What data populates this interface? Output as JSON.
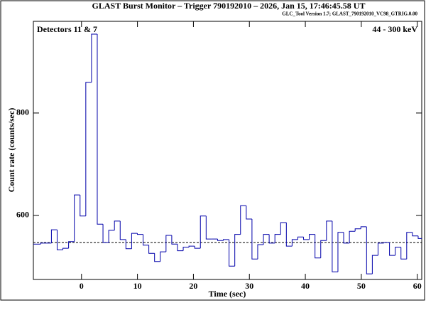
{
  "chart_data": {
    "type": "histogram",
    "title": "GLAST Burst Monitor  –  Trigger 790192010  –  2026, Jan 15, 17:46:45.58 UT",
    "subtitle": "GLC_Tool Version 1.7; GLAST_790192010_VC98_GTRIG.0.00",
    "annotations": [
      "Detectors 11 & 7",
      "44 - 300 keV"
    ],
    "x_label": "Time (sec)",
    "y_label": "Count rate (counts/sec)",
    "color": "#0000aa",
    "bins": [
      -8.6,
      -7.3,
      -5.376,
      -4.352,
      -3.328,
      -2.304,
      -1.28,
      -0.256,
      0.768,
      1.792,
      2.816,
      3.84,
      4.864,
      5.888,
      6.912,
      7.936,
      8.96,
      9.984,
      11.008,
      12.032,
      13.056,
      14.08,
      15.104,
      16.128,
      17.152,
      18.176,
      19.2,
      20.224,
      21.248,
      22.272,
      23.296,
      24.32,
      25.344,
      26.368,
      27.392,
      28.416,
      29.44,
      30.464,
      31.488,
      32.512,
      33.536,
      34.56,
      35.584,
      36.608,
      37.632,
      38.656,
      39.68,
      40.704,
      41.728,
      42.752,
      43.776,
      44.8,
      45.824,
      46.848,
      47.872,
      48.896,
      49.92,
      50.944,
      51.968,
      52.992,
      54.016,
      55.04,
      56.064,
      57.088,
      58.112,
      59.136,
      60.16,
      60.8
    ],
    "values": [
      544,
      546,
      572,
      533,
      536,
      549,
      640,
      599,
      860,
      954,
      583,
      547,
      571,
      589,
      553,
      535,
      565,
      563,
      542,
      526,
      510,
      529,
      561,
      544,
      531,
      538,
      540,
      536,
      599,
      554,
      554,
      551,
      553,
      501,
      563,
      619,
      593,
      515,
      543,
      563,
      546,
      563,
      586,
      540,
      553,
      558,
      553,
      563,
      517,
      551,
      589,
      490,
      567,
      546,
      569,
      574,
      578,
      486,
      522,
      546,
      547,
      522,
      538,
      515,
      567,
      560,
      555
    ],
    "background_level": 547,
    "xlim": [
      -8.6,
      60.8
    ],
    "ylim": [
      475,
      979
    ],
    "xticks": [
      0,
      10,
      20,
      30,
      40,
      50,
      60
    ],
    "yticks": [
      600,
      800
    ]
  }
}
